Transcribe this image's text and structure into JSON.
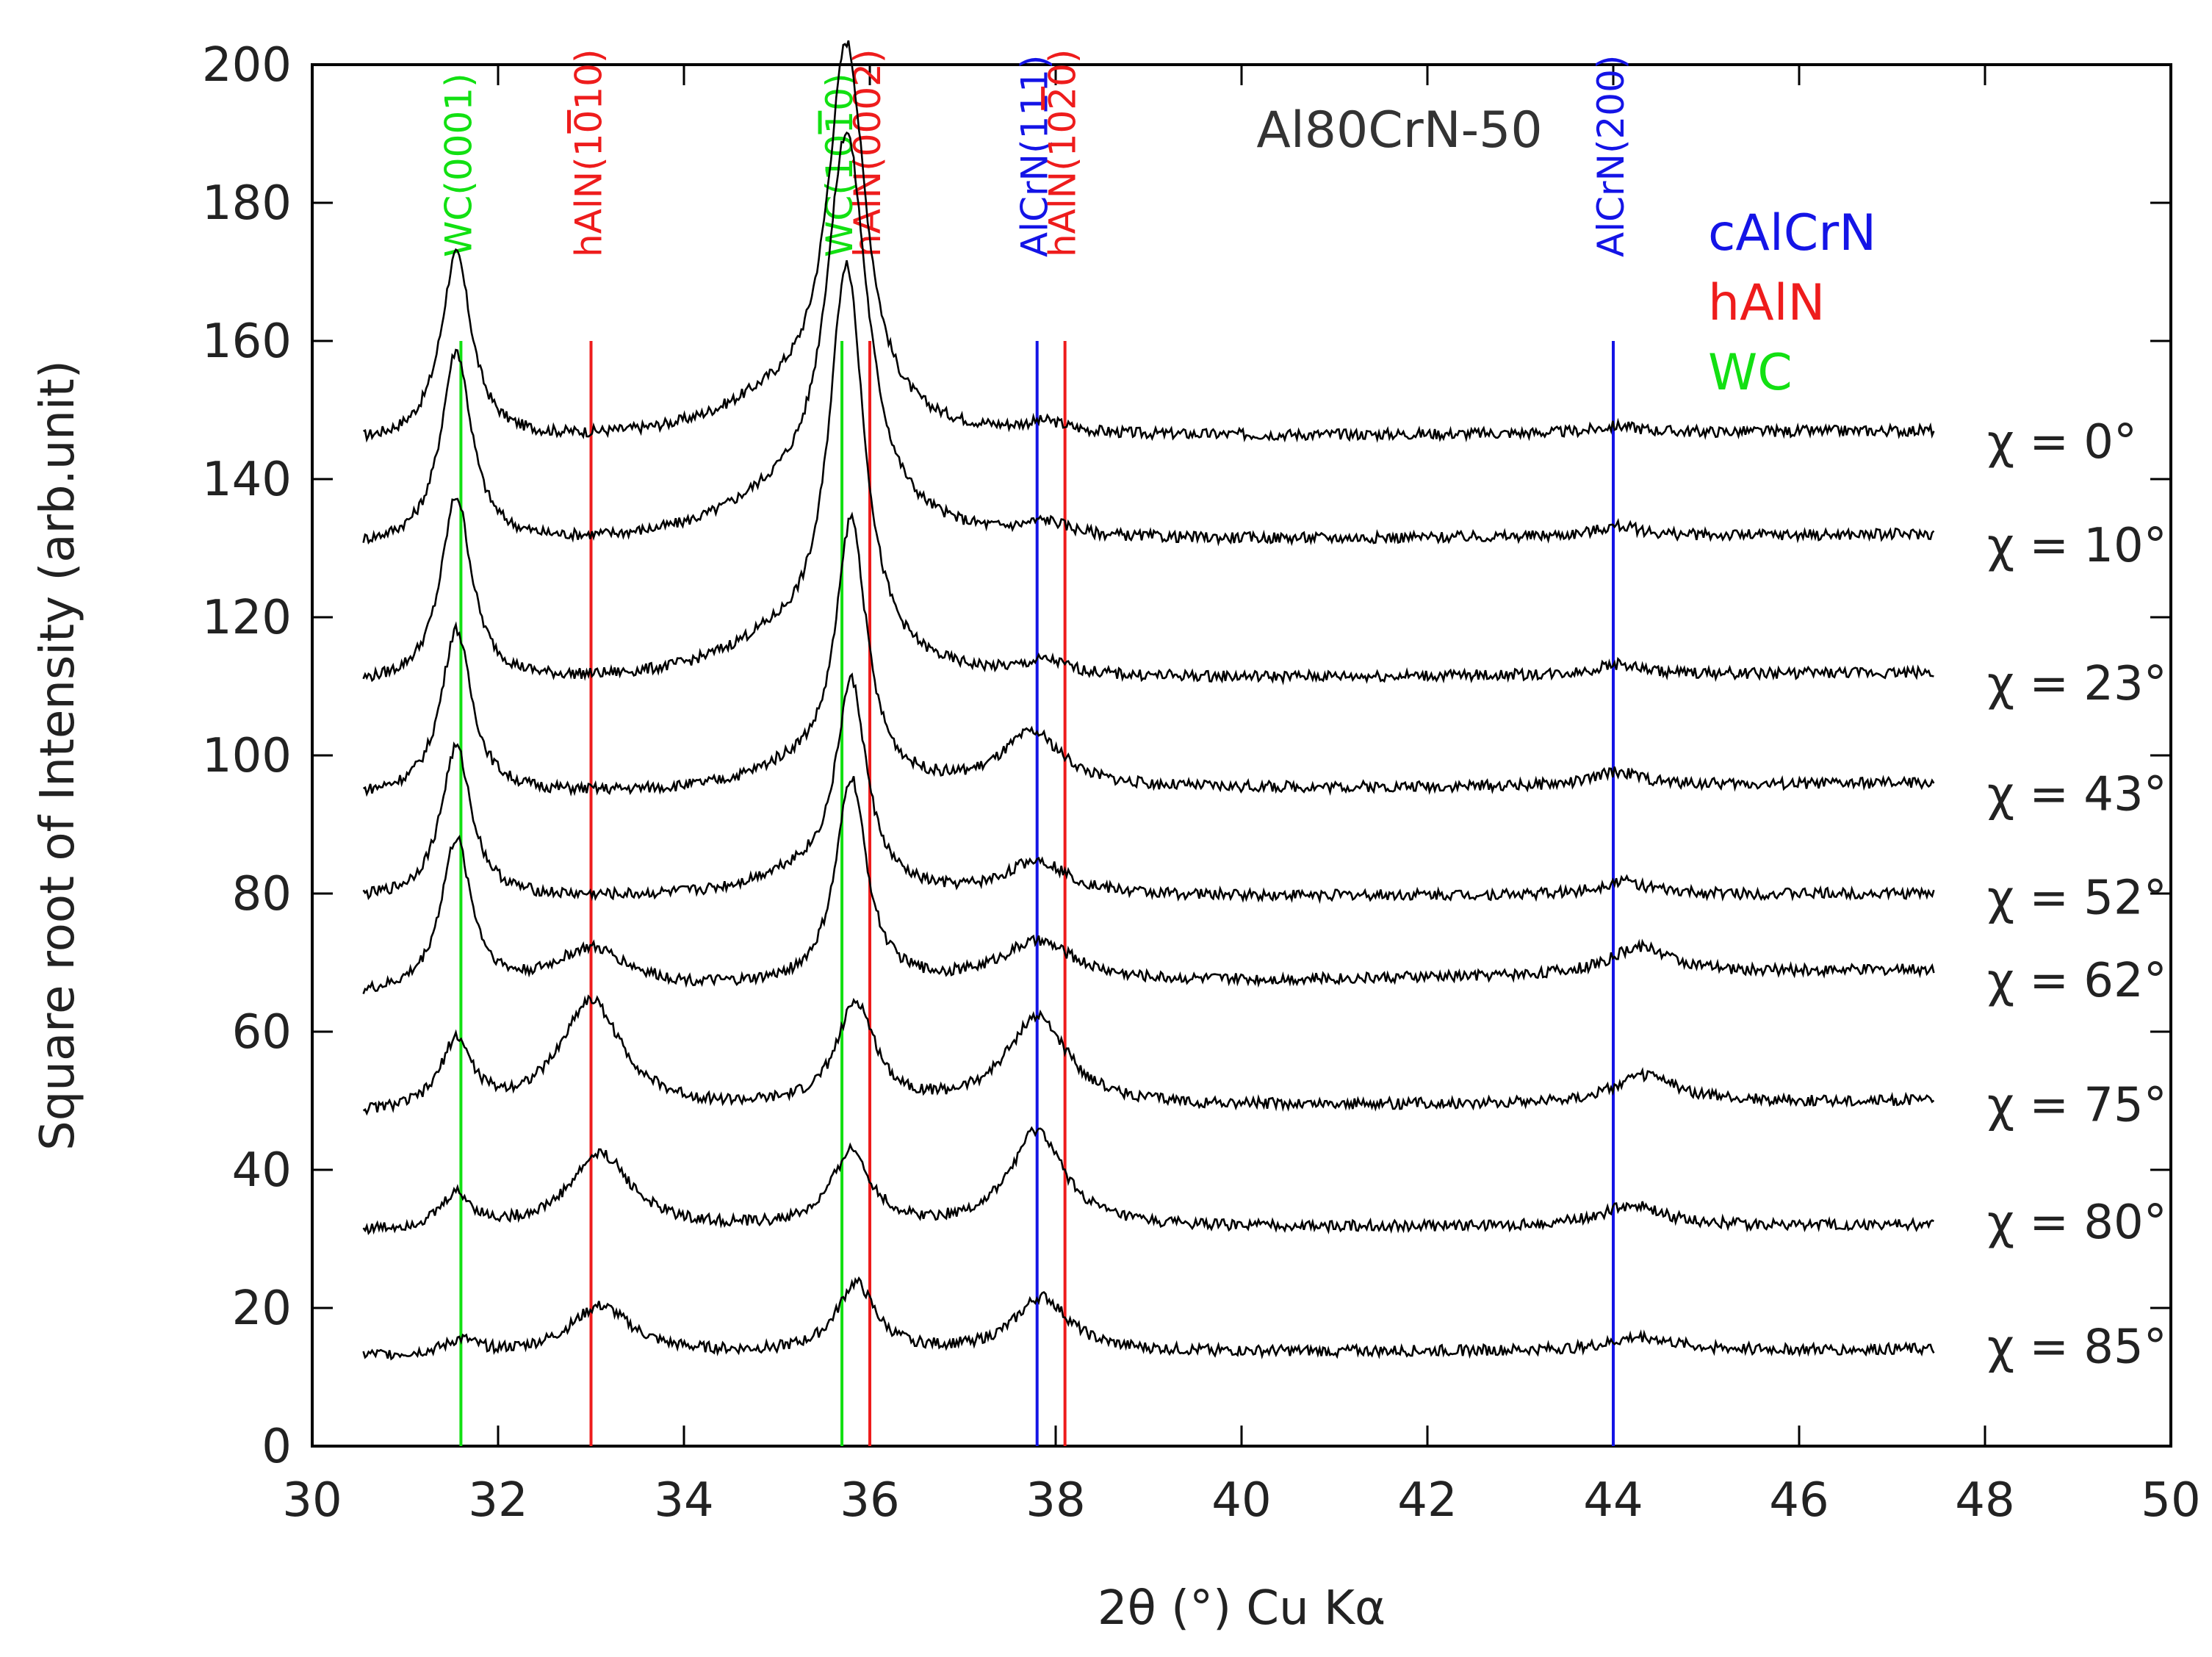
{
  "chart_data": {
    "type": "line",
    "title": "Al80CrN-50",
    "xlabel": "2θ (°) Cu Kα",
    "ylabel": "Square root of Intensity (arb.unit)",
    "xlim": [
      30,
      50
    ],
    "ylim": [
      0,
      200
    ],
    "xticks": [
      "30",
      "32",
      "34",
      "36",
      "38",
      "40",
      "42",
      "44",
      "46",
      "48",
      "50"
    ],
    "yticks": [
      "0",
      "20",
      "40",
      "60",
      "80",
      "100",
      "120",
      "140",
      "160",
      "180",
      "200"
    ],
    "grid": false,
    "legend": [
      {
        "label": "cAlCrN",
        "color": "#1414e6"
      },
      {
        "label": "hAlN",
        "color": "#ee1c1c"
      },
      {
        "label": "WC",
        "color": "#12e012"
      }
    ],
    "reference_lines": [
      {
        "label": "WC(0001)",
        "x": 31.6,
        "color": "#12e012",
        "overbar": null
      },
      {
        "label": "hAlN(1010)",
        "x": 33.0,
        "color": "#ee1c1c",
        "overbar": 6
      },
      {
        "label": "WC(1010)",
        "x": 35.7,
        "color": "#12e012",
        "overbar": 5
      },
      {
        "label": "hAlN(0002)",
        "x": 36.0,
        "color": "#ee1c1c",
        "overbar": null
      },
      {
        "label": "AlCrN(111)",
        "x": 37.8,
        "color": "#1414e6",
        "overbar": null
      },
      {
        "label": "hAlN(1020)",
        "x": 38.1,
        "color": "#ee1c1c",
        "overbar": 7
      },
      {
        "label": "AlCrN(200)",
        "x": 44.0,
        "color": "#1414e6",
        "overbar": null
      }
    ],
    "ref_line_top": 160,
    "series": [
      {
        "name": "χ = 0°",
        "base": 145,
        "end": 147,
        "peaks": [
          [
            31.55,
            27,
            0.2
          ],
          [
            35.75,
            55,
            0.25
          ],
          [
            35.0,
            5,
            0.8
          ],
          [
            37.9,
            1.5,
            0.3
          ],
          [
            44.05,
            1,
            0.3
          ]
        ]
      },
      {
        "name": "χ = 10°",
        "base": 130,
        "end": 132,
        "peaks": [
          [
            31.55,
            28,
            0.2
          ],
          [
            35.75,
            57,
            0.27
          ],
          [
            35.0,
            5,
            0.8
          ],
          [
            37.9,
            2,
            0.3
          ],
          [
            44.05,
            1.5,
            0.3
          ]
        ]
      },
      {
        "name": "χ = 23°",
        "base": 110,
        "end": 112,
        "peaks": [
          [
            31.55,
            27,
            0.2
          ],
          [
            35.75,
            58,
            0.23
          ],
          [
            35.0,
            5,
            0.8
          ],
          [
            37.9,
            2,
            0.3
          ],
          [
            44.05,
            1.5,
            0.3
          ]
        ]
      },
      {
        "name": "χ = 43°",
        "base": 94,
        "end": 96,
        "peaks": [
          [
            31.55,
            24,
            0.2
          ],
          [
            35.8,
            38,
            0.2
          ],
          [
            35.2,
            3,
            0.6
          ],
          [
            37.75,
            8,
            0.4
          ],
          [
            44.05,
            2,
            0.3
          ]
        ]
      },
      {
        "name": "χ = 52°",
        "base": 79,
        "end": 80,
        "peaks": [
          [
            31.55,
            22,
            0.2
          ],
          [
            35.8,
            30,
            0.2
          ],
          [
            35.2,
            3,
            0.6
          ],
          [
            37.8,
            5,
            0.4
          ],
          [
            44.1,
            2,
            0.3
          ]
        ]
      },
      {
        "name": "χ = 62°",
        "base": 65,
        "end": 69,
        "peaks": [
          [
            31.55,
            22,
            0.2
          ],
          [
            33.0,
            6,
            0.5
          ],
          [
            35.8,
            30,
            0.2
          ],
          [
            37.8,
            6,
            0.5
          ],
          [
            44.3,
            4,
            0.4
          ]
        ]
      },
      {
        "name": "χ = 75°",
        "base": 48,
        "end": 50,
        "peaks": [
          [
            31.55,
            10,
            0.2
          ],
          [
            33.0,
            16,
            0.4
          ],
          [
            35.85,
            15,
            0.25
          ],
          [
            37.8,
            13,
            0.4
          ],
          [
            44.35,
            4,
            0.4
          ]
        ]
      },
      {
        "name": "χ = 80°",
        "base": 31,
        "end": 32,
        "peaks": [
          [
            31.55,
            5,
            0.2
          ],
          [
            33.1,
            11,
            0.4
          ],
          [
            35.8,
            11,
            0.25
          ],
          [
            37.8,
            14,
            0.35
          ],
          [
            44.2,
            3,
            0.4
          ]
        ]
      },
      {
        "name": "χ = 85°",
        "base": 13,
        "end": 14,
        "peaks": [
          [
            31.6,
            2,
            0.2
          ],
          [
            33.1,
            7,
            0.4
          ],
          [
            35.85,
            10,
            0.25
          ],
          [
            37.85,
            8,
            0.35
          ],
          [
            44.3,
            2,
            0.4
          ]
        ]
      }
    ]
  }
}
